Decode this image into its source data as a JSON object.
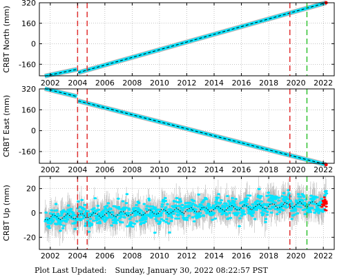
{
  "footer": {
    "label": "Plot Last Updated:",
    "timestamp": "Sunday, January 30, 2022 08:22:57 PST"
  },
  "colors": {
    "data": "#00e5ff",
    "error_bars": "#b8b8b8",
    "model": "#000000",
    "recent": "#ff0000",
    "offset_line": "#e03030",
    "event_line": "#30c030"
  },
  "chart_data": [
    {
      "type": "scatter",
      "station": "CRBT",
      "ylabel": "CRBT North (mm)",
      "xlim": [
        2001.2,
        2022.8
      ],
      "ylim": [
        -250,
        320
      ],
      "yticks": [
        -160,
        0,
        160,
        320
      ],
      "xticks": [
        2002,
        2004,
        2006,
        2008,
        2010,
        2012,
        2014,
        2016,
        2018,
        2020,
        2022
      ],
      "grid": true,
      "segments": [
        {
          "x": [
            2001.6,
            2003.95
          ],
          "y": [
            -252,
            -200
          ]
        },
        {
          "x": [
            2004.05,
            2022.2
          ],
          "y": [
            -225,
            320
          ]
        }
      ],
      "vlines": [
        {
          "x": 2004.0,
          "style": "dashed",
          "color": "red"
        },
        {
          "x": 2004.7,
          "style": "dashed",
          "color": "red"
        },
        {
          "x": 2019.55,
          "style": "dashed",
          "color": "red"
        },
        {
          "x": 2020.8,
          "style": "dashed",
          "color": "green"
        }
      ]
    },
    {
      "type": "scatter",
      "station": "CRBT",
      "ylabel": "CRBT East (mm)",
      "xlim": [
        2001.2,
        2022.8
      ],
      "ylim": [
        -250,
        320
      ],
      "yticks": [
        -160,
        0,
        160,
        320
      ],
      "xticks": [
        2002,
        2004,
        2006,
        2008,
        2010,
        2012,
        2014,
        2016,
        2018,
        2020,
        2022
      ],
      "grid": true,
      "segments": [
        {
          "x": [
            2001.6,
            2003.95
          ],
          "y": [
            322,
            262
          ]
        },
        {
          "x": [
            2004.05,
            2022.2
          ],
          "y": [
            228,
            -260
          ]
        }
      ],
      "vlines": [
        {
          "x": 2004.0,
          "style": "dashed",
          "color": "red"
        },
        {
          "x": 2004.7,
          "style": "dashed",
          "color": "red"
        },
        {
          "x": 2019.55,
          "style": "dashed",
          "color": "red"
        },
        {
          "x": 2020.8,
          "style": "dashed",
          "color": "green"
        }
      ]
    },
    {
      "type": "scatter",
      "station": "CRBT",
      "ylabel": "CRBT Up (mm)",
      "xlim": [
        2001.2,
        2022.8
      ],
      "ylim": [
        -30,
        30
      ],
      "yticks": [
        -20,
        0,
        20
      ],
      "xticks": [
        2002,
        2004,
        2006,
        2008,
        2010,
        2012,
        2014,
        2016,
        2018,
        2020,
        2022
      ],
      "grid": true,
      "trend": {
        "x": [
          2001.6,
          2022.2
        ],
        "y": [
          -4,
          8
        ]
      },
      "scatter_sd": 4.5,
      "error_bar_half": 9,
      "vlines": [
        {
          "x": 2004.0,
          "style": "dashed",
          "color": "red"
        },
        {
          "x": 2004.7,
          "style": "dashed",
          "color": "red"
        },
        {
          "x": 2019.55,
          "style": "dashed",
          "color": "red"
        },
        {
          "x": 2020.8,
          "style": "dashed",
          "color": "green"
        }
      ]
    }
  ]
}
